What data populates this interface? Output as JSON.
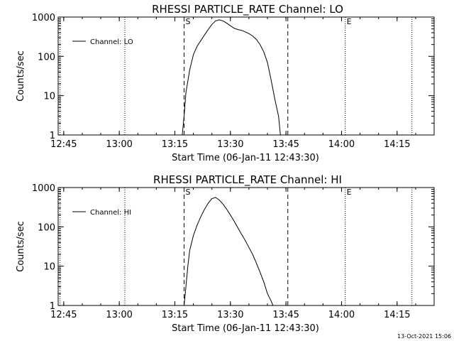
{
  "timestamp": "13-Oct-2021 15:06",
  "chart_data": [
    {
      "type": "line",
      "title": "RHESSI PARTICLE_RATE Channel: LO",
      "xlabel": "Start Time (06-Jan-11 12:43:30)",
      "ylabel": "Counts/sec",
      "yscale": "log",
      "ylim": [
        1,
        1000
      ],
      "xlim": [
        "12:43:30",
        "14:25:00"
      ],
      "x_ticks": [
        "12:45",
        "13:00",
        "13:15",
        "13:30",
        "13:45",
        "14:00",
        "14:15"
      ],
      "y_ticks": [
        "1",
        "10",
        "100",
        "1000"
      ],
      "legend": "top-left",
      "series": [
        {
          "name": "Channel: LO",
          "x": [
            "13:17:00",
            "13:17:30",
            "13:18:00",
            "13:19:00",
            "13:20:00",
            "13:21:00",
            "13:22:00",
            "13:23:00",
            "13:24:00",
            "13:25:00",
            "13:26:00",
            "13:27:00",
            "13:28:00",
            "13:29:00",
            "13:30:00",
            "13:31:00",
            "13:32:00",
            "13:33:00",
            "13:34:00",
            "13:35:00",
            "13:36:00",
            "13:37:00",
            "13:38:00",
            "13:39:00",
            "13:40:00",
            "13:41:00",
            "13:42:00",
            "13:43:00",
            "13:43:30"
          ],
          "y": [
            1,
            3,
            12,
            45,
            110,
            180,
            250,
            350,
            480,
            650,
            800,
            850,
            800,
            700,
            600,
            520,
            480,
            460,
            420,
            380,
            330,
            270,
            200,
            130,
            70,
            25,
            8,
            3,
            1
          ]
        }
      ],
      "markers": [
        {
          "label": "",
          "time": "12:44:00",
          "style": "dotted"
        },
        {
          "label": "",
          "time": "13:01:30",
          "style": "dotted"
        },
        {
          "label": "S",
          "time": "13:17:30",
          "style": "dashed"
        },
        {
          "label": "",
          "time": "13:45:30",
          "style": "dashed"
        },
        {
          "label": "E",
          "time": "14:01:00",
          "style": "dotted"
        },
        {
          "label": "",
          "time": "14:19:00",
          "style": "dotted"
        }
      ]
    },
    {
      "type": "line",
      "title": "RHESSI PARTICLE_RATE Channel: HI",
      "xlabel": "Start Time (06-Jan-11 12:43:30)",
      "ylabel": "Counts/sec",
      "yscale": "log",
      "ylim": [
        1,
        1000
      ],
      "xlim": [
        "12:43:30",
        "14:25:00"
      ],
      "x_ticks": [
        "12:45",
        "13:00",
        "13:15",
        "13:30",
        "13:45",
        "14:00",
        "14:15"
      ],
      "y_ticks": [
        "1",
        "10",
        "100",
        "1000"
      ],
      "legend": "top-left",
      "series": [
        {
          "name": "Channel: HI",
          "x": [
            "13:17:30",
            "13:18:00",
            "13:18:30",
            "13:19:00",
            "13:20:00",
            "13:21:00",
            "13:22:00",
            "13:23:00",
            "13:24:00",
            "13:25:00",
            "13:26:00",
            "13:27:00",
            "13:28:00",
            "13:29:00",
            "13:30:00",
            "13:31:00",
            "13:32:00",
            "13:33:00",
            "13:34:00",
            "13:35:00",
            "13:36:00",
            "13:37:00",
            "13:38:00",
            "13:39:00",
            "13:40:00",
            "13:41:00",
            "13:41:30"
          ],
          "y": [
            1,
            3,
            10,
            25,
            60,
            110,
            180,
            280,
            400,
            520,
            560,
            480,
            380,
            280,
            200,
            140,
            95,
            65,
            45,
            30,
            20,
            12,
            7,
            4,
            2,
            1.3,
            1
          ]
        }
      ],
      "markers": [
        {
          "label": "",
          "time": "12:44:00",
          "style": "dotted"
        },
        {
          "label": "",
          "time": "13:01:30",
          "style": "dotted"
        },
        {
          "label": "S",
          "time": "13:17:30",
          "style": "dashed"
        },
        {
          "label": "",
          "time": "13:45:30",
          "style": "dashed"
        },
        {
          "label": "E",
          "time": "14:01:00",
          "style": "dotted"
        },
        {
          "label": "",
          "time": "14:19:00",
          "style": "dotted"
        }
      ]
    }
  ]
}
